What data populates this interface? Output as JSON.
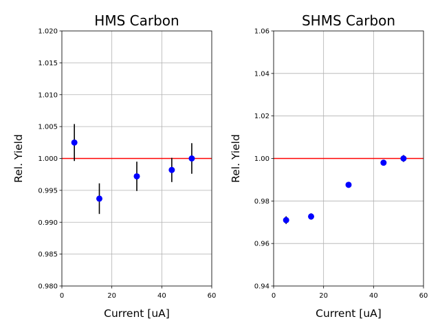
{
  "chart_data": [
    {
      "type": "scatter",
      "title": "HMS Carbon",
      "xlabel": "Current [uA]",
      "ylabel": "Rel. Yield",
      "xlim": [
        0,
        60
      ],
      "ylim": [
        0.98,
        1.02
      ],
      "xticks": [
        "0",
        "20",
        "40",
        "60"
      ],
      "yticks": [
        "0.980",
        "0.985",
        "0.990",
        "0.995",
        "1.000",
        "1.005",
        "1.010",
        "1.015",
        "1.020"
      ],
      "grid": true,
      "reference_line": {
        "y": 1.0,
        "color": "#ff0000"
      },
      "marker_color": "#0000ff",
      "errorbar_color": "#000000",
      "points": [
        {
          "x": 5,
          "y": 1.0025,
          "err": 0.0029
        },
        {
          "x": 15,
          "y": 0.9937,
          "err": 0.0024
        },
        {
          "x": 30,
          "y": 0.9972,
          "err": 0.0023
        },
        {
          "x": 44,
          "y": 0.9982,
          "err": 0.0019
        },
        {
          "x": 52,
          "y": 1.0,
          "err": 0.0024
        }
      ]
    },
    {
      "type": "scatter",
      "title": "SHMS Carbon",
      "xlabel": "Current [uA]",
      "ylabel": "Rel. Yield",
      "xlim": [
        0,
        60
      ],
      "ylim": [
        0.94,
        1.06
      ],
      "xticks": [
        "0",
        "20",
        "40",
        "60"
      ],
      "yticks": [
        "0.94",
        "0.96",
        "0.98",
        "1.00",
        "1.02",
        "1.04",
        "1.06"
      ],
      "grid": true,
      "reference_line": {
        "y": 1.0,
        "color": "#ff0000"
      },
      "marker_color": "#0000ff",
      "errorbar_color": "#000000",
      "points": [
        {
          "x": 5,
          "y": 0.971,
          "err": 0.0018
        },
        {
          "x": 15,
          "y": 0.9727,
          "err": 0.0015
        },
        {
          "x": 30,
          "y": 0.9876,
          "err": 0.0012
        },
        {
          "x": 44,
          "y": 0.998,
          "err": 0.0012
        },
        {
          "x": 52,
          "y": 1.0,
          "err": 0.0016
        }
      ]
    }
  ]
}
